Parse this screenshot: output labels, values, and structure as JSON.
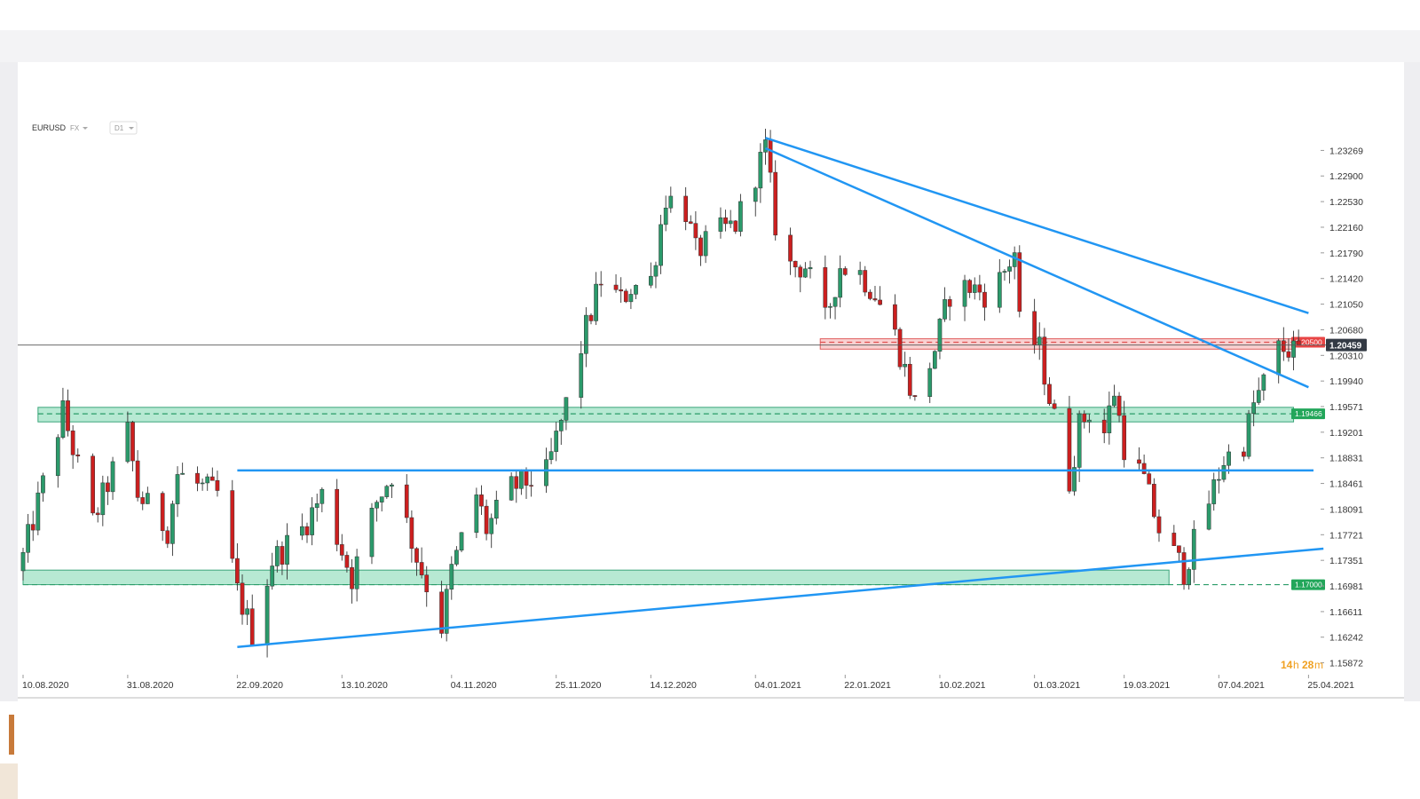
{
  "symbol": {
    "name": "EURUSD",
    "market": "FX",
    "timeframe": "D1"
  },
  "timer": {
    "hours": "14",
    "h_unit": "h",
    "minutes": "28",
    "m_unit": "m"
  },
  "colors": {
    "bull": "#2b9a6b",
    "bear": "#cc1f1f",
    "trendline": "#2196f3",
    "support_zone": "#9fe2c4",
    "resistance_zone": "#f7c2c2",
    "support_tag": "#22a65a",
    "resistance_tag": "#e84545",
    "current_tag": "#333a44"
  },
  "chart_data": {
    "type": "candlestick",
    "title": "",
    "xlabel": "",
    "ylabel": "",
    "ylim": [
      1.157,
      1.238
    ],
    "y_ticks": [
      "1.23269",
      "1.22900",
      "1.22530",
      "1.22160",
      "1.21790",
      "1.21420",
      "1.21050",
      "1.20680",
      "1.20310",
      "1.19940",
      "1.19571",
      "1.19201",
      "1.18831",
      "1.18461",
      "1.18091",
      "1.17721",
      "1.17351",
      "1.16981",
      "1.16611",
      "1.16242",
      "1.15872"
    ],
    "x_ticks": [
      "10.08.2020",
      "31.08.2020",
      "22.09.2020",
      "13.10.2020",
      "04.11.2020",
      "25.11.2020",
      "14.12.2020",
      "04.01.2021",
      "22.01.2021",
      "10.02.2021",
      "01.03.2021",
      "19.03.2021",
      "07.04.2021",
      "25.04.2021"
    ],
    "x_start": "2020-08-10",
    "x_end": "2021-04-26",
    "current_price": "1.20459",
    "levels": [
      {
        "name": "resistance",
        "value": "1.20500",
        "zone": [
          1.204,
          1.2055
        ],
        "from": "2021-01-17",
        "to": "2021-04-22"
      },
      {
        "name": "support",
        "value": "1.19466",
        "zone": [
          1.1935,
          1.1956
        ],
        "from": "2020-08-13",
        "to": "2021-04-22"
      },
      {
        "name": "support",
        "value": "1.17000",
        "zone": [
          1.17,
          1.1721
        ],
        "from": "2020-08-10",
        "to": "2021-03-28"
      }
    ],
    "horizontal_line": {
      "value": 1.1865,
      "from": "2020-09-22",
      "to": "2021-04-26"
    },
    "trendlines": [
      {
        "from": [
          "2021-01-06",
          1.2345
        ],
        "to": [
          "2021-04-25",
          1.2092
        ]
      },
      {
        "from": [
          "2021-01-06",
          1.233
        ],
        "to": [
          "2021-04-25",
          1.1985
        ]
      },
      {
        "from": [
          "2020-09-22",
          1.161
        ],
        "to": [
          "2021-04-28",
          1.1752
        ]
      }
    ],
    "anchors": [
      [
        "2020-08-10",
        1.174
      ],
      [
        "2020-08-18",
        1.195
      ],
      [
        "2020-08-24",
        1.179
      ],
      [
        "2020-08-31",
        1.192
      ],
      [
        "2020-09-02",
        1.183
      ],
      [
        "2020-09-08",
        1.178
      ],
      [
        "2020-09-10",
        1.186
      ],
      [
        "2020-09-15",
        1.184
      ],
      [
        "2020-09-18",
        1.183
      ],
      [
        "2020-09-22",
        1.169
      ],
      [
        "2020-09-25",
        1.163
      ],
      [
        "2020-09-29",
        1.1735
      ],
      [
        "2020-10-05",
        1.178
      ],
      [
        "2020-10-09",
        1.183
      ],
      [
        "2020-10-15",
        1.171
      ],
      [
        "2020-10-20",
        1.182
      ],
      [
        "2020-10-23",
        1.186
      ],
      [
        "2020-10-28",
        1.174
      ],
      [
        "2020-11-02",
        1.164
      ],
      [
        "2020-11-04",
        1.172
      ],
      [
        "2020-11-09",
        1.183
      ],
      [
        "2020-11-11",
        1.178
      ],
      [
        "2020-11-16",
        1.184
      ],
      [
        "2020-11-23",
        1.186
      ],
      [
        "2020-11-27",
        1.196
      ],
      [
        "2020-12-01",
        1.207
      ],
      [
        "2020-12-04",
        1.214
      ],
      [
        "2020-12-08",
        1.211
      ],
      [
        "2020-12-10",
        1.213
      ],
      [
        "2020-12-14",
        1.214
      ],
      [
        "2020-12-17",
        1.226
      ],
      [
        "2020-12-21",
        1.224
      ],
      [
        "2020-12-23",
        1.218
      ],
      [
        "2020-12-28",
        1.221
      ],
      [
        "2020-12-31",
        1.222
      ],
      [
        "2021-01-06",
        1.233
      ],
      [
        "2021-01-08",
        1.222
      ],
      [
        "2021-01-11",
        1.216
      ],
      [
        "2021-01-14",
        1.216
      ],
      [
        "2021-01-18",
        1.208
      ],
      [
        "2021-01-21",
        1.216
      ],
      [
        "2021-01-25",
        1.215
      ],
      [
        "2021-01-28",
        1.212
      ],
      [
        "2021-02-01",
        1.206
      ],
      [
        "2021-02-05",
        1.196
      ],
      [
        "2021-02-09",
        1.204
      ],
      [
        "2021-02-12",
        1.212
      ],
      [
        "2021-02-16",
        1.213
      ],
      [
        "2021-02-19",
        1.212
      ],
      [
        "2021-02-22",
        1.214
      ],
      [
        "2021-02-25",
        1.218
      ],
      [
        "2021-02-26",
        1.2075
      ],
      [
        "2021-03-02",
        1.204
      ],
      [
        "2021-03-04",
        1.197
      ],
      [
        "2021-03-08",
        1.185
      ],
      [
        "2021-03-10",
        1.193
      ],
      [
        "2021-03-12",
        1.195
      ],
      [
        "2021-03-15",
        1.192
      ],
      [
        "2021-03-17",
        1.198
      ],
      [
        "2021-03-19",
        1.19
      ],
      [
        "2021-03-23",
        1.185
      ],
      [
        "2021-03-26",
        1.178
      ],
      [
        "2021-03-31",
        1.172
      ],
      [
        "2021-04-02",
        1.176
      ],
      [
        "2021-04-05",
        1.182
      ],
      [
        "2021-04-08",
        1.188
      ],
      [
        "2021-04-12",
        1.1905
      ],
      [
        "2021-04-14",
        1.196
      ],
      [
        "2021-04-16",
        1.199
      ],
      [
        "2021-04-19",
        1.204
      ],
      [
        "2021-04-21",
        1.204
      ],
      [
        "2021-04-22",
        1.2035
      ],
      [
        "2021-04-23",
        1.2046
      ]
    ]
  }
}
